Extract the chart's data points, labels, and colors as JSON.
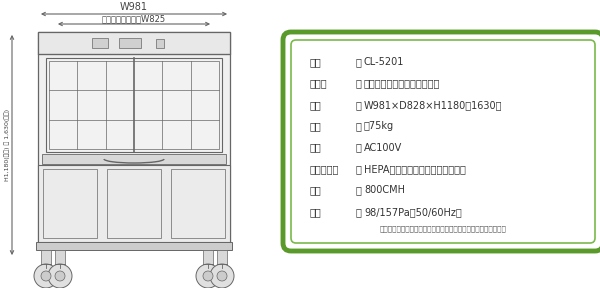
{
  "bg_color": "#ffffff",
  "diagram_color": "#999999",
  "diagram_color_dark": "#666666",
  "green_border_outer": "#5a9a2a",
  "green_border_inner": "#7ab94a",
  "spec_labels": [
    "品番",
    "製品名",
    "寸法",
    "重量",
    "電源",
    "フィルター",
    "風量",
    "静圧"
  ],
  "spec_colons": [
    "：",
    "：",
    "：",
    "：",
    "：",
    "：",
    "：",
    "："
  ],
  "spec_values": [
    "CL-5201",
    "床敷回収装置（昇降機能付）",
    "W981×D828×H1180〜1630㎜",
    "約75kg",
    "AC100V",
    "HEPAフィルター・プレフィルター",
    "800CMH",
    "98/157Pa（50/60Hz）"
  ],
  "spec_note": "《本仕様は改良の為、断りなく変更となる可能性もございます》",
  "dim_W981_label": "W981",
  "dim_W825_label": "有効作業スペースW825",
  "dim_H_label": "H1,180(最小) 〜 1,630(最大)"
}
